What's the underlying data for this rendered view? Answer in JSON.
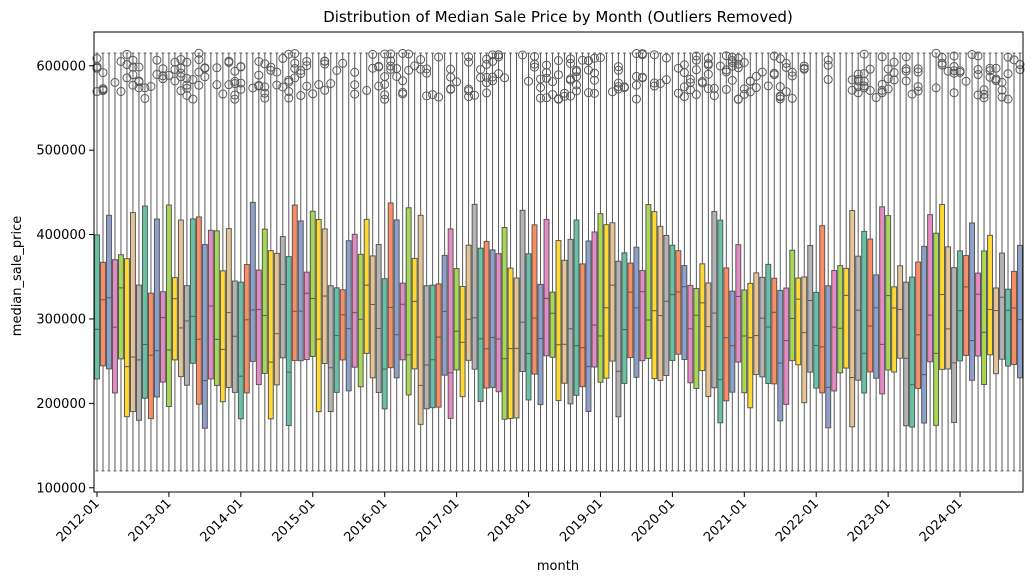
{
  "chart_data": {
    "type": "box",
    "title": "Distribution of Median Sale Price by Month (Outliers Removed)",
    "xlabel": "month",
    "ylabel": "median_sale_price",
    "ylim": [
      95000,
      640000
    ],
    "yticks": [
      100000,
      200000,
      300000,
      400000,
      500000,
      600000
    ],
    "ytick_labels": [
      "100000",
      "200000",
      "300000",
      "400000",
      "500000",
      "600000"
    ],
    "xtick_labels": [
      "2012-01",
      "2013-01",
      "2014-01",
      "2015-01",
      "2016-01",
      "2017-01",
      "2018-01",
      "2019-01",
      "2020-01",
      "2021-01",
      "2022-01",
      "2023-01",
      "2024-01"
    ],
    "start_year": 2012,
    "start_month": 1,
    "n_months": 155,
    "whisker_low": 120000,
    "whisker_high": 615000,
    "palette": [
      "#66c2a5",
      "#fc8d62",
      "#8da0cb",
      "#e78ac3",
      "#a6d854",
      "#ffd92f",
      "#e5c494",
      "#b3b3b3"
    ],
    "line_color": "#595959",
    "grid": false,
    "legend": "none"
  }
}
